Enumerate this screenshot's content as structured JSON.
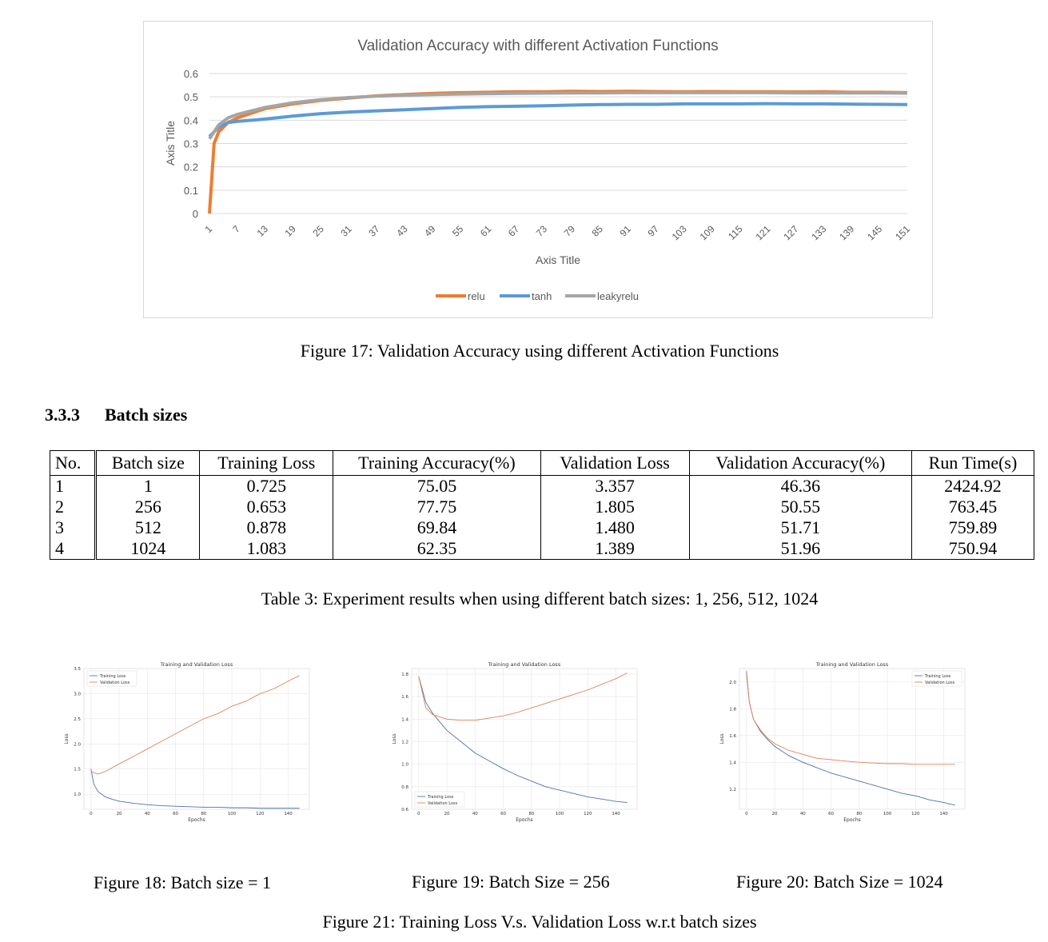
{
  "figure17": {
    "caption": "Figure 17: Validation Accuracy using different Activation Functions",
    "chart_data": {
      "type": "line",
      "title": "Validation Accuracy with different Activation Functions",
      "xlabel": "Axis Title",
      "ylabel": "Axis Title",
      "ylim": [
        0,
        0.6
      ],
      "yticks": [
        "0",
        "0.1",
        "0.2",
        "0.3",
        "0.4",
        "0.5",
        "0.6"
      ],
      "xticks": [
        "1",
        "7",
        "13",
        "19",
        "25",
        "31",
        "37",
        "43",
        "49",
        "55",
        "61",
        "67",
        "73",
        "79",
        "85",
        "91",
        "97",
        "103",
        "109",
        "115",
        "121",
        "127",
        "133",
        "139",
        "145",
        "151"
      ],
      "grid": true,
      "legend_position": "bottom",
      "series": [
        {
          "name": "relu",
          "color": "#ed7d31",
          "x": [
            1,
            2,
            3,
            5,
            7,
            10,
            13,
            19,
            25,
            31,
            37,
            43,
            49,
            55,
            61,
            67,
            73,
            79,
            85,
            91,
            97,
            103,
            109,
            115,
            121,
            127,
            133,
            139,
            145,
            151
          ],
          "y": [
            0,
            0.3,
            0.35,
            0.39,
            0.41,
            0.43,
            0.45,
            0.47,
            0.485,
            0.495,
            0.505,
            0.51,
            0.515,
            0.518,
            0.52,
            0.522,
            0.522,
            0.524,
            0.523,
            0.524,
            0.523,
            0.522,
            0.523,
            0.522,
            0.522,
            0.521,
            0.522,
            0.52,
            0.52,
            0.518
          ]
        },
        {
          "name": "tanh",
          "color": "#5b9bd5",
          "x": [
            1,
            2,
            3,
            5,
            7,
            10,
            13,
            19,
            25,
            31,
            37,
            43,
            49,
            55,
            61,
            67,
            73,
            79,
            85,
            91,
            97,
            103,
            109,
            115,
            121,
            127,
            133,
            139,
            145,
            151
          ],
          "y": [
            0.33,
            0.35,
            0.37,
            0.39,
            0.395,
            0.4,
            0.405,
            0.418,
            0.428,
            0.435,
            0.44,
            0.445,
            0.45,
            0.455,
            0.458,
            0.46,
            0.462,
            0.465,
            0.467,
            0.468,
            0.468,
            0.47,
            0.47,
            0.47,
            0.471,
            0.47,
            0.47,
            0.469,
            0.468,
            0.467
          ]
        },
        {
          "name": "leakyrelu",
          "color": "#a5a5a5",
          "x": [
            1,
            2,
            3,
            5,
            7,
            10,
            13,
            19,
            25,
            31,
            37,
            43,
            49,
            55,
            61,
            67,
            73,
            79,
            85,
            91,
            97,
            103,
            109,
            115,
            121,
            127,
            133,
            139,
            145,
            151
          ],
          "y": [
            0.32,
            0.35,
            0.38,
            0.41,
            0.425,
            0.44,
            0.455,
            0.475,
            0.488,
            0.497,
            0.503,
            0.507,
            0.51,
            0.512,
            0.514,
            0.515,
            0.516,
            0.517,
            0.517,
            0.518,
            0.518,
            0.518,
            0.518,
            0.518,
            0.518,
            0.517,
            0.517,
            0.517,
            0.517,
            0.516
          ]
        }
      ]
    }
  },
  "section": {
    "number": "3.3.3",
    "title": "Batch sizes"
  },
  "table3": {
    "headers": [
      "No.",
      "Batch size",
      "Training Loss",
      "Training Accuracy(%)",
      "Validation Loss",
      "Validation Accuracy(%)",
      "Run Time(s)"
    ],
    "rows": [
      [
        "1",
        "1",
        "0.725",
        "75.05",
        "3.357",
        "46.36",
        "2424.92"
      ],
      [
        "2",
        "256",
        "0.653",
        "77.75",
        "1.805",
        "50.55",
        "763.45"
      ],
      [
        "3",
        "512",
        "0.878",
        "69.84",
        "1.480",
        "51.71",
        "759.89"
      ],
      [
        "4",
        "1024",
        "1.083",
        "62.35",
        "1.389",
        "51.96",
        "750.94"
      ]
    ],
    "caption": "Table 3: Experiment results when using different batch sizes: 1, 256, 512, 1024"
  },
  "small_charts": {
    "chart_data": [
      {
        "type": "line",
        "title": "Training and Validation Loss",
        "xlabel": "Epochs",
        "ylabel": "Loss",
        "ylim": [
          0.7,
          3.5
        ],
        "xlim": [
          -5,
          155
        ],
        "xticks": [
          "0",
          "20",
          "40",
          "60",
          "80",
          "100",
          "120",
          "140"
        ],
        "yticks": [
          "1.0",
          "1.5",
          "2.0",
          "2.5",
          "3.0",
          "3.5"
        ],
        "legend_position": "top-left",
        "grid": true,
        "series": [
          {
            "name": "Training Loss",
            "color": "#4c72b0",
            "x": [
              0,
              2,
              5,
              10,
              15,
              20,
              30,
              40,
              50,
              60,
              70,
              80,
              90,
              100,
              110,
              120,
              130,
              140,
              148
            ],
            "y": [
              1.5,
              1.2,
              1.05,
              0.95,
              0.9,
              0.86,
              0.82,
              0.79,
              0.77,
              0.76,
              0.75,
              0.74,
              0.74,
              0.73,
              0.73,
              0.72,
              0.72,
              0.72,
              0.72
            ]
          },
          {
            "name": "Validation Loss",
            "color": "#dd8452",
            "x": [
              0,
              5,
              10,
              20,
              30,
              40,
              50,
              60,
              70,
              80,
              90,
              100,
              110,
              120,
              130,
              140,
              148
            ],
            "y": [
              1.45,
              1.4,
              1.45,
              1.6,
              1.75,
              1.9,
              2.05,
              2.2,
              2.35,
              2.5,
              2.6,
              2.75,
              2.85,
              3.0,
              3.1,
              3.25,
              3.36
            ]
          }
        ],
        "caption": "Figure 18: Batch size = 1"
      },
      {
        "type": "line",
        "title": "Training and Validation Loss",
        "xlabel": "Epochs",
        "ylabel": "Loss",
        "ylim": [
          0.6,
          1.85
        ],
        "xlim": [
          -5,
          155
        ],
        "xticks": [
          "0",
          "20",
          "40",
          "60",
          "80",
          "100",
          "120",
          "140"
        ],
        "yticks": [
          "0.6",
          "0.8",
          "1.0",
          "1.2",
          "1.4",
          "1.6",
          "1.8"
        ],
        "legend_position": "bottom-left",
        "grid": true,
        "series": [
          {
            "name": "Training Loss",
            "color": "#4c72b0",
            "x": [
              0,
              5,
              10,
              20,
              30,
              40,
              50,
              60,
              70,
              80,
              90,
              100,
              110,
              120,
              130,
              140,
              148
            ],
            "y": [
              1.78,
              1.55,
              1.45,
              1.3,
              1.2,
              1.1,
              1.03,
              0.96,
              0.9,
              0.85,
              0.8,
              0.77,
              0.74,
              0.71,
              0.69,
              0.67,
              0.66
            ]
          },
          {
            "name": "Validation Loss",
            "color": "#dd8452",
            "x": [
              0,
              5,
              10,
              20,
              30,
              40,
              50,
              60,
              70,
              80,
              90,
              100,
              110,
              120,
              130,
              140,
              148
            ],
            "y": [
              1.78,
              1.5,
              1.44,
              1.4,
              1.39,
              1.39,
              1.41,
              1.43,
              1.46,
              1.5,
              1.54,
              1.58,
              1.62,
              1.66,
              1.71,
              1.76,
              1.81
            ]
          }
        ],
        "caption": "Figure 19: Batch Size = 256"
      },
      {
        "type": "line",
        "title": "Training and Validation Loss",
        "xlabel": "Epochs",
        "ylabel": "Loss",
        "ylim": [
          1.05,
          2.1
        ],
        "xlim": [
          -5,
          155
        ],
        "xticks": [
          "0",
          "20",
          "40",
          "60",
          "80",
          "100",
          "120",
          "140"
        ],
        "yticks": [
          "1.2",
          "1.4",
          "1.6",
          "1.8",
          "2.0"
        ],
        "legend_position": "top-right",
        "grid": true,
        "series": [
          {
            "name": "Training Loss",
            "color": "#4c72b0",
            "x": [
              0,
              2,
              5,
              10,
              15,
              20,
              30,
              40,
              50,
              60,
              70,
              80,
              90,
              100,
              110,
              120,
              130,
              140,
              148
            ],
            "y": [
              2.08,
              1.85,
              1.72,
              1.63,
              1.57,
              1.52,
              1.45,
              1.4,
              1.36,
              1.32,
              1.29,
              1.26,
              1.23,
              1.2,
              1.17,
              1.15,
              1.12,
              1.1,
              1.08
            ]
          },
          {
            "name": "Validation Loss",
            "color": "#dd8452",
            "x": [
              0,
              2,
              5,
              10,
              15,
              20,
              30,
              40,
              50,
              60,
              70,
              80,
              90,
              100,
              110,
              120,
              130,
              140,
              148
            ],
            "y": [
              2.06,
              1.85,
              1.72,
              1.64,
              1.58,
              1.54,
              1.49,
              1.46,
              1.43,
              1.42,
              1.41,
              1.4,
              1.395,
              1.39,
              1.39,
              1.385,
              1.385,
              1.385,
              1.385
            ]
          }
        ],
        "caption": "Figure 20: Batch Size = 1024"
      }
    ],
    "group_caption": "Figure 21: Training Loss V.s. Validation Loss w.r.t batch sizes"
  }
}
